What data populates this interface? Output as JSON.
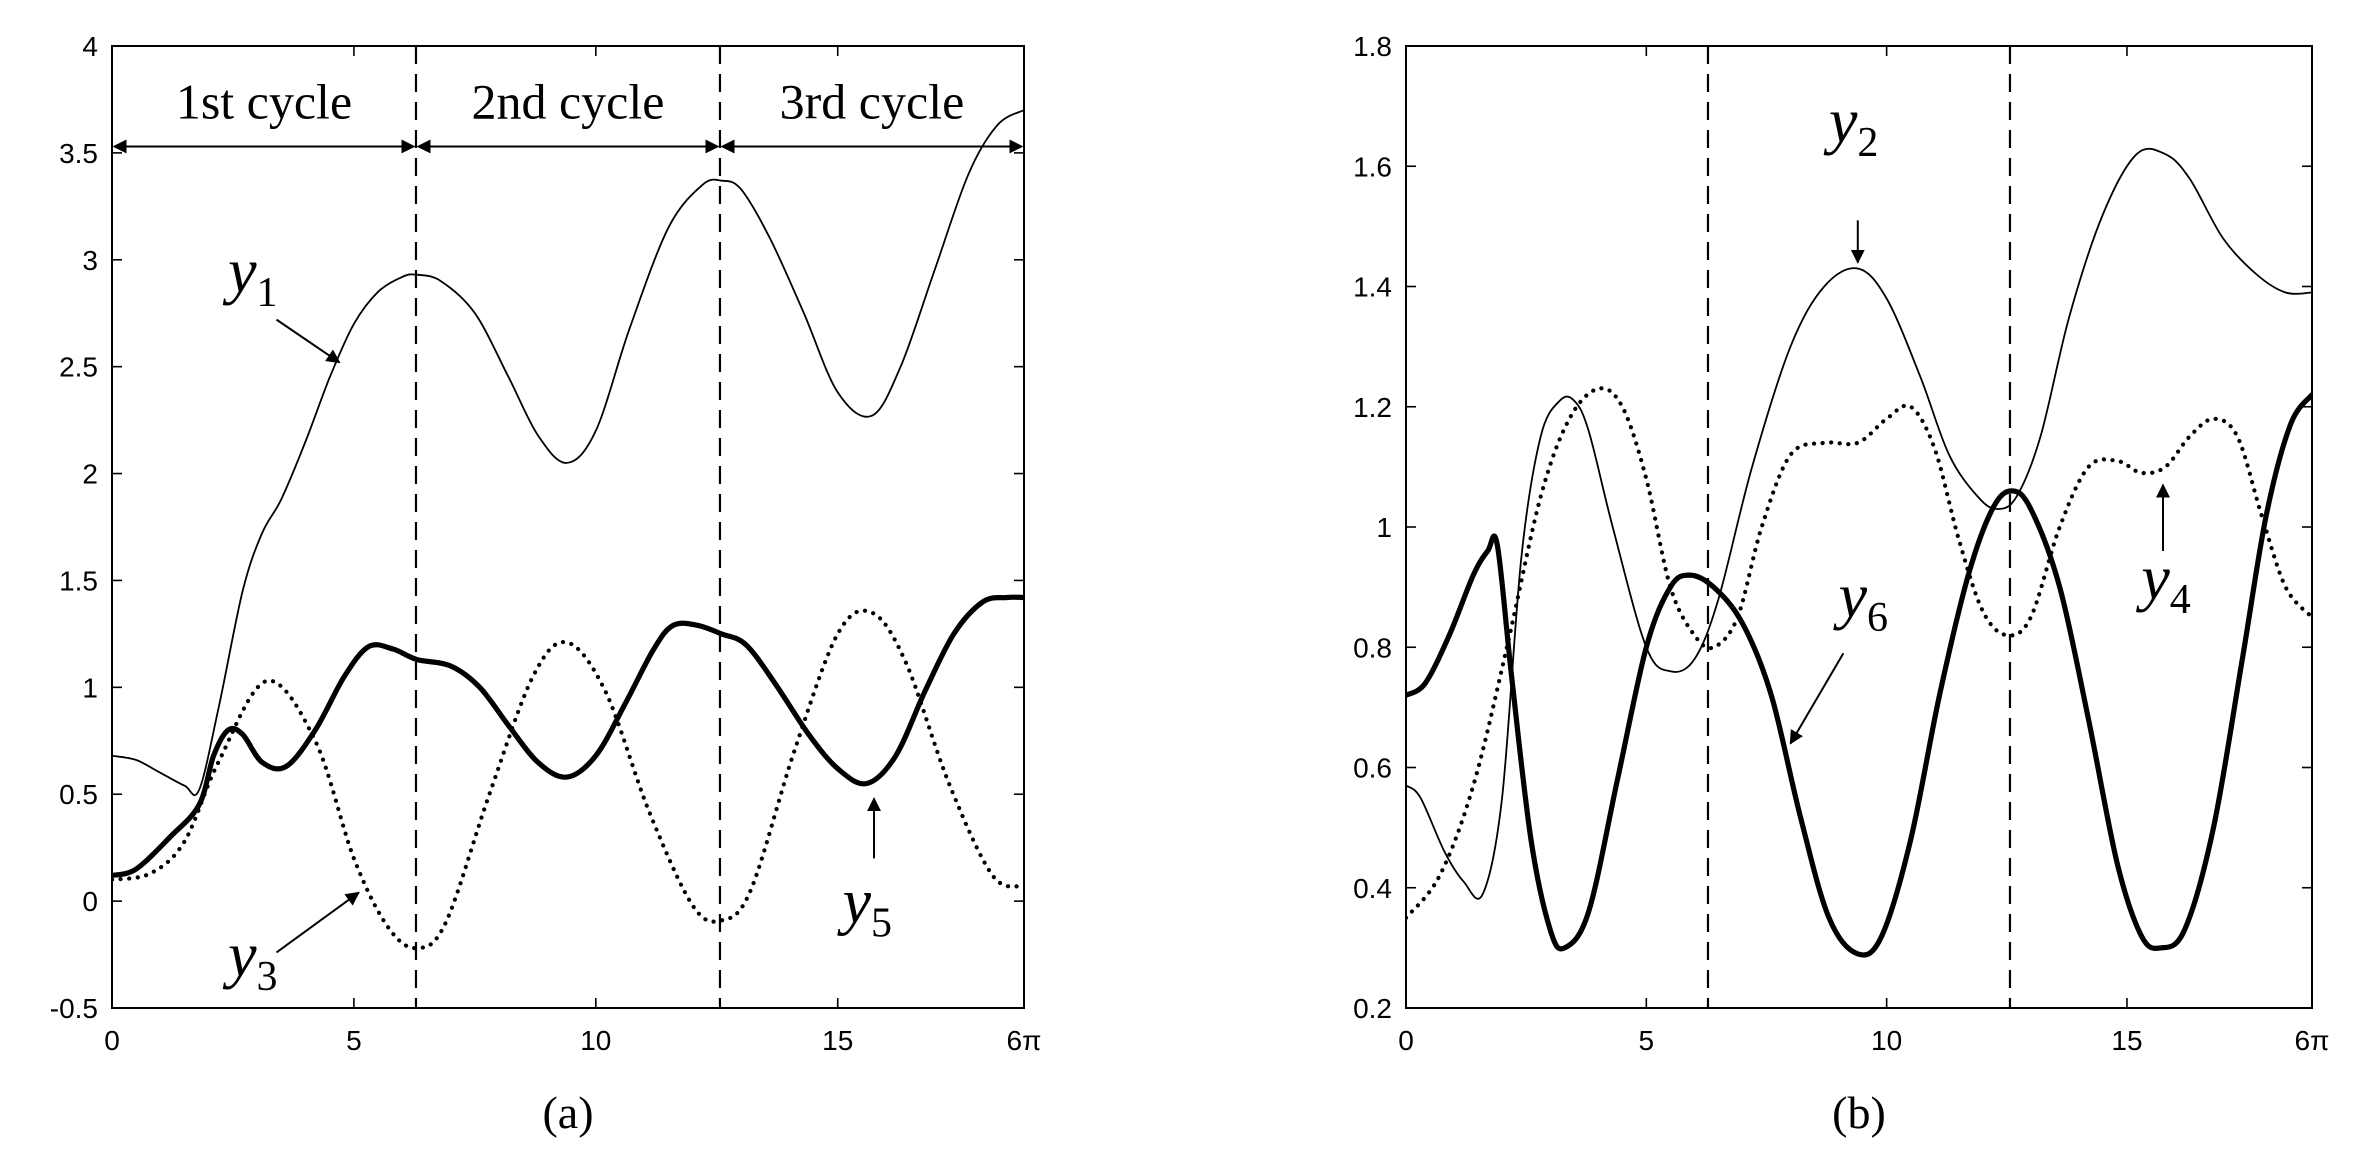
{
  "chart_data": [
    {
      "type": "line",
      "panel_label": "(a)",
      "xlim": [
        0,
        18.85
      ],
      "ylim": [
        -0.5,
        4
      ],
      "x_ticks": [
        0,
        5,
        10,
        15,
        18.85
      ],
      "x_tick_labels": [
        "0",
        "5",
        "10",
        "15",
        "6π"
      ],
      "y_ticks": [
        -0.5,
        0,
        0.5,
        1,
        1.5,
        2,
        2.5,
        3,
        3.5,
        4
      ],
      "y_tick_labels": [
        "-0.5",
        "0",
        "0.5",
        "1",
        "1.5",
        "2",
        "2.5",
        "3",
        "3.5",
        "4"
      ],
      "grid": false,
      "vlines": [
        6.283,
        12.566
      ],
      "cycle_labels": [
        "1st cycle",
        "2nd cycle",
        "3rd cycle"
      ],
      "cycle_bounds": [
        0,
        6.283,
        12.566,
        18.85
      ],
      "cycle_arrow_y": 3.53,
      "series": [
        {
          "name": "y1",
          "style": "thin",
          "x": [
            0,
            0.5,
            1.0,
            1.5,
            1.8,
            2.2,
            2.7,
            3.1,
            3.5,
            4.0,
            4.5,
            5.0,
            5.5,
            6.0,
            6.3,
            6.8,
            7.5,
            8.2,
            8.8,
            9.4,
            10.0,
            10.7,
            11.5,
            12.2,
            12.6,
            13.0,
            13.6,
            14.3,
            15.0,
            15.7,
            16.3,
            17.0,
            17.7,
            18.3,
            18.85
          ],
          "y": [
            0.68,
            0.66,
            0.6,
            0.54,
            0.52,
            0.9,
            1.45,
            1.72,
            1.88,
            2.15,
            2.45,
            2.7,
            2.85,
            2.92,
            2.93,
            2.9,
            2.75,
            2.45,
            2.18,
            2.05,
            2.2,
            2.68,
            3.15,
            3.35,
            3.37,
            3.33,
            3.1,
            2.75,
            2.38,
            2.27,
            2.5,
            2.95,
            3.4,
            3.63,
            3.7
          ]
        },
        {
          "name": "y3",
          "style": "dotted",
          "x": [
            0,
            0.8,
            1.5,
            2.2,
            3.2,
            4.2,
            5.0,
            5.7,
            6.3,
            6.9,
            7.8,
            8.7,
            9.4,
            10.2,
            11.1,
            12.0,
            12.6,
            13.2,
            14.1,
            15.0,
            15.7,
            16.4,
            17.3,
            18.2,
            18.85
          ],
          "y": [
            0.1,
            0.13,
            0.28,
            0.65,
            1.03,
            0.75,
            0.2,
            -0.12,
            -0.22,
            -0.1,
            0.5,
            1.05,
            1.21,
            0.98,
            0.42,
            -0.02,
            -0.09,
            0.05,
            0.7,
            1.25,
            1.35,
            1.12,
            0.55,
            0.12,
            0.07
          ]
        },
        {
          "name": "y5",
          "style": "thick",
          "x": [
            0,
            0.5,
            1.2,
            1.8,
            2.1,
            2.4,
            2.7,
            3.1,
            3.6,
            4.2,
            4.8,
            5.3,
            5.8,
            6.3,
            7.0,
            7.6,
            8.2,
            8.8,
            9.4,
            10.0,
            10.6,
            11.2,
            11.6,
            12.1,
            12.6,
            13.1,
            13.7,
            14.4,
            15.0,
            15.6,
            16.2,
            16.8,
            17.4,
            18.0,
            18.5,
            18.85
          ],
          "y": [
            0.12,
            0.15,
            0.3,
            0.45,
            0.68,
            0.8,
            0.78,
            0.65,
            0.63,
            0.8,
            1.05,
            1.19,
            1.18,
            1.13,
            1.1,
            1.0,
            0.82,
            0.65,
            0.58,
            0.68,
            0.92,
            1.18,
            1.29,
            1.29,
            1.25,
            1.2,
            1.02,
            0.78,
            0.62,
            0.55,
            0.68,
            0.98,
            1.25,
            1.4,
            1.42,
            1.42
          ]
        }
      ],
      "annotations": [
        {
          "label": "y",
          "sub": "1",
          "x": 2.4,
          "y": 2.85,
          "ax": 3.4,
          "ay": 2.72,
          "tx": 4.7,
          "ty": 2.52
        },
        {
          "label": "y",
          "sub": "3",
          "x": 2.4,
          "y": -0.35,
          "ax": 3.4,
          "ay": -0.24,
          "tx": 5.1,
          "ty": 0.04
        },
        {
          "label": "y",
          "sub": "5",
          "x": 15.1,
          "y": -0.1,
          "ax": 15.75,
          "ay": 0.2,
          "tx": 15.75,
          "ty": 0.48
        }
      ]
    },
    {
      "type": "line",
      "panel_label": "(b)",
      "xlim": [
        0,
        18.85
      ],
      "ylim": [
        0.2,
        1.8
      ],
      "x_ticks": [
        0,
        5,
        10,
        15,
        18.85
      ],
      "x_tick_labels": [
        "0",
        "5",
        "10",
        "15",
        "6π"
      ],
      "y_ticks": [
        0.2,
        0.4,
        0.6,
        0.8,
        1.0,
        1.2,
        1.4,
        1.6,
        1.8
      ],
      "y_tick_labels": [
        "0.2",
        "0.4",
        "0.6",
        "0.8",
        "1",
        "1.2",
        "1.4",
        "1.6",
        "1.8"
      ],
      "grid": false,
      "vlines": [
        6.283,
        12.566
      ],
      "series": [
        {
          "name": "y2",
          "style": "thin",
          "x": [
            0,
            0.3,
            0.8,
            1.2,
            1.6,
            2.0,
            2.4,
            2.8,
            3.2,
            3.5,
            3.8,
            4.3,
            5.0,
            5.5,
            6.0,
            6.5,
            7.2,
            8.0,
            8.7,
            9.4,
            10.0,
            10.7,
            11.3,
            11.9,
            12.3,
            12.7,
            13.2,
            13.8,
            14.5,
            15.2,
            15.8,
            16.3,
            17.0,
            17.7,
            18.3,
            18.85
          ],
          "y": [
            0.57,
            0.55,
            0.46,
            0.41,
            0.39,
            0.55,
            0.95,
            1.15,
            1.21,
            1.21,
            1.16,
            1.0,
            0.8,
            0.76,
            0.78,
            0.88,
            1.1,
            1.3,
            1.4,
            1.43,
            1.38,
            1.25,
            1.12,
            1.05,
            1.03,
            1.05,
            1.15,
            1.35,
            1.52,
            1.62,
            1.62,
            1.58,
            1.48,
            1.42,
            1.39,
            1.39
          ]
        },
        {
          "name": "y4",
          "style": "dotted",
          "x": [
            0,
            0.7,
            1.4,
            2.1,
            2.8,
            3.4,
            4.0,
            4.5,
            5.0,
            5.5,
            6.0,
            6.4,
            6.9,
            7.4,
            8.0,
            8.7,
            9.4,
            10.0,
            10.5,
            11.0,
            11.5,
            12.0,
            12.5,
            13.0,
            13.6,
            14.2,
            14.8,
            15.3,
            15.8,
            16.3,
            16.8,
            17.3,
            17.8,
            18.3,
            18.85
          ],
          "y": [
            0.35,
            0.42,
            0.57,
            0.8,
            1.05,
            1.18,
            1.23,
            1.2,
            1.08,
            0.9,
            0.82,
            0.8,
            0.85,
            1.0,
            1.12,
            1.14,
            1.14,
            1.18,
            1.2,
            1.13,
            0.98,
            0.86,
            0.82,
            0.85,
            1.0,
            1.1,
            1.11,
            1.09,
            1.1,
            1.15,
            1.18,
            1.15,
            1.02,
            0.9,
            0.85
          ]
        },
        {
          "name": "y6",
          "style": "thick",
          "x": [
            0,
            0.4,
            0.9,
            1.4,
            1.7,
            1.9,
            2.2,
            2.6,
            3.0,
            3.3,
            3.8,
            4.4,
            5.0,
            5.5,
            5.9,
            6.4,
            7.0,
            7.6,
            8.2,
            8.8,
            9.4,
            9.9,
            10.5,
            11.1,
            11.7,
            12.2,
            12.6,
            13.0,
            13.6,
            14.2,
            14.8,
            15.3,
            15.7,
            16.2,
            16.8,
            17.4,
            17.9,
            18.4,
            18.85
          ],
          "y": [
            0.72,
            0.74,
            0.82,
            0.92,
            0.96,
            0.97,
            0.75,
            0.48,
            0.33,
            0.3,
            0.36,
            0.58,
            0.8,
            0.9,
            0.92,
            0.9,
            0.84,
            0.72,
            0.52,
            0.35,
            0.29,
            0.32,
            0.48,
            0.72,
            0.92,
            1.03,
            1.06,
            1.03,
            0.9,
            0.68,
            0.44,
            0.32,
            0.3,
            0.33,
            0.5,
            0.78,
            1.02,
            1.17,
            1.22
          ]
        }
      ],
      "annotations": [
        {
          "label": "y",
          "sub": "2",
          "x": 8.8,
          "y": 1.64,
          "ax": 9.4,
          "ay": 1.51,
          "tx": 9.4,
          "ty": 1.44
        },
        {
          "label": "y",
          "sub": "4",
          "x": 15.3,
          "y": 0.88,
          "ax": 15.75,
          "ay": 0.96,
          "tx": 15.75,
          "ty": 1.07
        },
        {
          "label": "y",
          "sub": "6",
          "x": 9.0,
          "y": 0.85,
          "ax": 9.1,
          "ay": 0.79,
          "tx": 8.0,
          "ty": 0.64
        }
      ]
    }
  ]
}
